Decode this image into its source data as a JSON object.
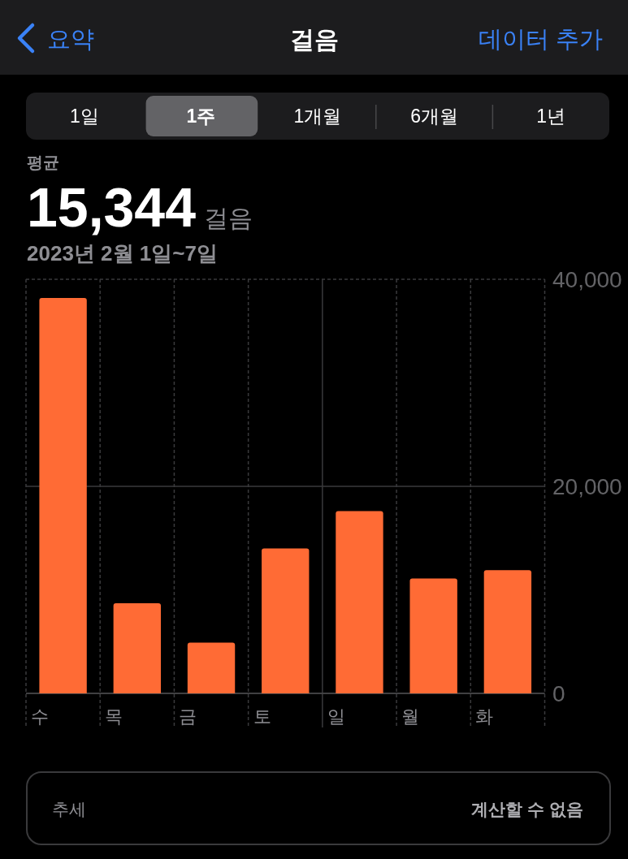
{
  "chart_data": {
    "type": "bar",
    "title": "걸음",
    "subtitle": "2023년 2월 1일~7일",
    "categories": [
      "수",
      "목",
      "금",
      "토",
      "일",
      "월",
      "화"
    ],
    "values": [
      38200,
      8700,
      4900,
      14000,
      17600,
      11100,
      11900
    ],
    "color": "#ff6b35",
    "ylim": [
      0,
      40000
    ],
    "yticks": [
      0,
      {
        "value": 20000,
        "label": "20,000"
      },
      {
        "value": 40000,
        "label": "40,000"
      }
    ],
    "grid": true,
    "annotations": [
      "요약",
      "데이터 추가",
      "1일",
      "1주",
      "1개월",
      "6개월",
      "1년",
      "평균",
      "15,344",
      "걸음",
      "추세",
      "계산할 수 없음"
    ]
  }
}
